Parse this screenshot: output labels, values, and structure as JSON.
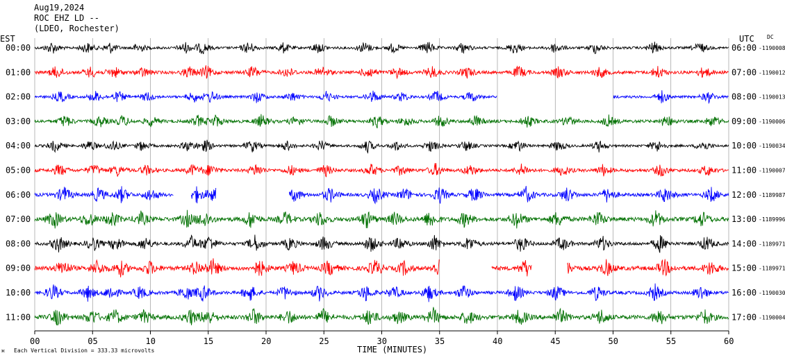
{
  "header": {
    "date": "Aug19,2024",
    "station": "ROC EHZ LD --",
    "network": "(LDEO, Rochester)"
  },
  "left_timezone": "EST",
  "right_timezone": "UTC",
  "dc_label": "DC",
  "footer_note": "Each Vertical Division =  333.33 microvolts",
  "colors": {
    "black": "#000000",
    "red": "#ff0000",
    "blue": "#0000ff",
    "green": "#007000"
  },
  "chart_data": {
    "type": "line",
    "title": "",
    "xlabel": "TIME (MINUTES)",
    "ylabel": "",
    "xlim": [
      0,
      60
    ],
    "x_ticks": [
      "00",
      "05",
      "10",
      "15",
      "20",
      "25",
      "30",
      "35",
      "40",
      "45",
      "50",
      "55",
      "60"
    ],
    "grid": true,
    "rows": [
      {
        "est": "00:00",
        "utc": "06:00",
        "dc": "-1190008",
        "color": "black",
        "gaps": []
      },
      {
        "est": "01:00",
        "utc": "07:00",
        "dc": "-1190012",
        "color": "red",
        "gaps": []
      },
      {
        "est": "02:00",
        "utc": "08:00",
        "dc": "-1190013",
        "color": "blue",
        "gaps": [
          [
            40.0,
            50.0
          ]
        ]
      },
      {
        "est": "03:00",
        "utc": "09:00",
        "dc": "-1190006",
        "color": "green",
        "gaps": []
      },
      {
        "est": "04:00",
        "utc": "10:00",
        "dc": "-1190034",
        "color": "black",
        "gaps": []
      },
      {
        "est": "05:00",
        "utc": "11:00",
        "dc": "-1190007",
        "color": "red",
        "gaps": []
      },
      {
        "est": "06:00",
        "utc": "12:00",
        "dc": "-1189987",
        "color": "blue",
        "gaps": [
          [
            12.0,
            13.5
          ],
          [
            15.7,
            22.0
          ]
        ]
      },
      {
        "est": "07:00",
        "utc": "13:00",
        "dc": "-1189996",
        "color": "green",
        "gaps": []
      },
      {
        "est": "08:00",
        "utc": "14:00",
        "dc": "-1189971",
        "color": "black",
        "gaps": []
      },
      {
        "est": "09:00",
        "utc": "15:00",
        "dc": "-1189971",
        "color": "red",
        "gaps": [
          [
            35.0,
            39.5
          ],
          [
            43.0,
            46.0
          ]
        ]
      },
      {
        "est": "10:00",
        "utc": "16:00",
        "dc": "-1190030",
        "color": "blue",
        "gaps": []
      },
      {
        "est": "11:00",
        "utc": "17:00",
        "dc": "-1190004",
        "color": "green",
        "gaps": []
      }
    ],
    "events": [
      {
        "minute": 1,
        "amp": 1.0
      },
      {
        "minute": 4,
        "amp": 0.9
      },
      {
        "minute": 6,
        "amp": 0.9
      },
      {
        "minute": 8.5,
        "amp": 0.8
      },
      {
        "minute": 12.5,
        "amp": 0.9
      },
      {
        "minute": 14,
        "amp": 1.0
      },
      {
        "minute": 18,
        "amp": 1.0
      },
      {
        "minute": 21,
        "amp": 0.8
      },
      {
        "minute": 24,
        "amp": 0.9
      },
      {
        "minute": 28,
        "amp": 1.0
      },
      {
        "minute": 30.5,
        "amp": 0.8
      },
      {
        "minute": 33.5,
        "amp": 1.0
      },
      {
        "minute": 36.5,
        "amp": 0.9
      },
      {
        "minute": 41,
        "amp": 1.0
      },
      {
        "minute": 44.5,
        "amp": 0.9
      },
      {
        "minute": 48,
        "amp": 0.9
      },
      {
        "minute": 53,
        "amp": 1.0
      },
      {
        "minute": 57,
        "amp": 0.9
      }
    ]
  }
}
